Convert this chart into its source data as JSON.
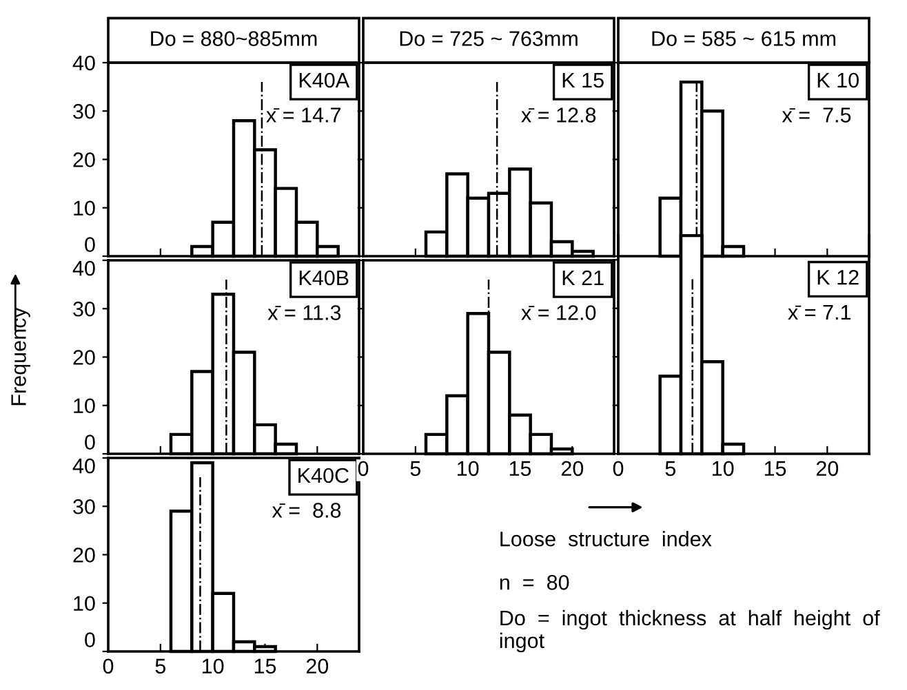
{
  "chart_data": [
    {
      "type": "histogram",
      "title": "Do = 880~885mm",
      "subtitle": "K40A",
      "color": "#000000",
      "bins": [
        8,
        10,
        12,
        14,
        16,
        18,
        20,
        22
      ],
      "values": [
        2,
        7,
        28,
        22,
        14,
        7,
        2
      ],
      "xlim": [
        0,
        24
      ],
      "ylim": [
        0,
        40
      ],
      "xticks": [
        0,
        5,
        10,
        15,
        20
      ],
      "yticks": [
        0,
        10,
        20,
        30,
        40
      ],
      "tick_labels": "y",
      "ref_lines": [
        {
          "axis": "x",
          "value": 14.7,
          "label": "x̄ = 14.7",
          "line_style": "dashdot"
        }
      ]
    },
    {
      "type": "histogram",
      "title": "Do = 725 ~ 763mm",
      "subtitle": "K 15",
      "color": "#000000",
      "bins": [
        6,
        8,
        10,
        12,
        14,
        16,
        18,
        20,
        22
      ],
      "values": [
        5,
        17,
        12,
        13,
        18,
        11,
        3,
        1
      ],
      "xlim": [
        0,
        24
      ],
      "ylim": [
        0,
        40
      ],
      "xticks": [
        0,
        5,
        10,
        15,
        20
      ],
      "yticks": [
        0,
        10,
        20,
        30,
        40
      ],
      "tick_labels": false,
      "ref_lines": [
        {
          "axis": "x",
          "value": 12.8,
          "label": "x̄ = 12.8",
          "line_style": "dashdot"
        }
      ]
    },
    {
      "type": "histogram",
      "title": "Do = 585 ~ 615 mm",
      "subtitle": "K 10",
      "color": "#000000",
      "bins": [
        4,
        6,
        8,
        10,
        12
      ],
      "values": [
        12,
        36,
        30,
        2
      ],
      "xlim": [
        0,
        24
      ],
      "ylim": [
        0,
        40
      ],
      "xticks": [
        0,
        5,
        10,
        15,
        20
      ],
      "yticks": [
        0,
        10,
        20,
        30,
        40
      ],
      "tick_labels": false,
      "ref_lines": [
        {
          "axis": "x",
          "value": 7.5,
          "label": "x̄ =  7.5",
          "line_style": "dashdot"
        }
      ]
    },
    {
      "type": "histogram",
      "subtitle": "K40B",
      "ylabel": "Frequency",
      "color": "#000000",
      "bins": [
        6,
        8,
        10,
        12,
        14,
        16,
        18
      ],
      "values": [
        4,
        17,
        33,
        21,
        6,
        2
      ],
      "xlim": [
        0,
        24
      ],
      "ylim": [
        0,
        40
      ],
      "xticks": [
        0,
        5,
        10,
        15,
        20
      ],
      "yticks": [
        0,
        10,
        20,
        30,
        40
      ],
      "tick_labels": "y",
      "ref_lines": [
        {
          "axis": "x",
          "value": 11.3,
          "label": "x̄ = 11.3",
          "line_style": "dashdot"
        }
      ]
    },
    {
      "type": "histogram",
      "subtitle": "K 21",
      "color": "#000000",
      "bins": [
        6,
        8,
        10,
        12,
        14,
        16,
        18,
        20
      ],
      "values": [
        4,
        12,
        29,
        21,
        8,
        4,
        1
      ],
      "xlim": [
        0,
        24
      ],
      "ylim": [
        0,
        40
      ],
      "xticks": [
        0,
        5,
        10,
        15,
        20
      ],
      "yticks": [
        0,
        10,
        20,
        30,
        40
      ],
      "tick_labels": "x",
      "ref_lines": [
        {
          "axis": "x",
          "value": 12.0,
          "label": "x̄ = 12.0",
          "line_style": "dashdot"
        }
      ]
    },
    {
      "type": "histogram",
      "subtitle": "K 12",
      "color": "#000000",
      "bins": [
        4,
        6,
        8,
        10,
        12
      ],
      "values": [
        16,
        45,
        19,
        2
      ],
      "xlim": [
        0,
        24
      ],
      "ylim": [
        0,
        45
      ],
      "xticks": [
        0,
        5,
        10,
        15,
        20
      ],
      "yticks": [
        0,
        10,
        20,
        30,
        40
      ],
      "tick_labels": "x",
      "ref_lines": [
        {
          "axis": "x",
          "value": 7.1,
          "label": "x̄ = 7.1",
          "line_style": "dashdot"
        }
      ]
    },
    {
      "type": "histogram",
      "subtitle": "K40C",
      "color": "#000000",
      "bins": [
        6,
        8,
        10,
        12,
        14,
        16
      ],
      "values": [
        29,
        39,
        12,
        2,
        1
      ],
      "xlim": [
        0,
        24
      ],
      "ylim": [
        0,
        40
      ],
      "xticks": [
        0,
        5,
        10,
        15,
        20
      ],
      "yticks": [
        0,
        10,
        20,
        30,
        40
      ],
      "ref_lines": [
        {
          "axis": "x",
          "value": 8.8,
          "label": "x̄ =  8.8",
          "line_style": "dashdot"
        }
      ]
    },
    {
      "type": "other",
      "annotations": [
        "Loose  structure  index",
        "n  =  80",
        "Do  =  ingot  thickness  at  half  height  of  ingot"
      ]
    }
  ]
}
